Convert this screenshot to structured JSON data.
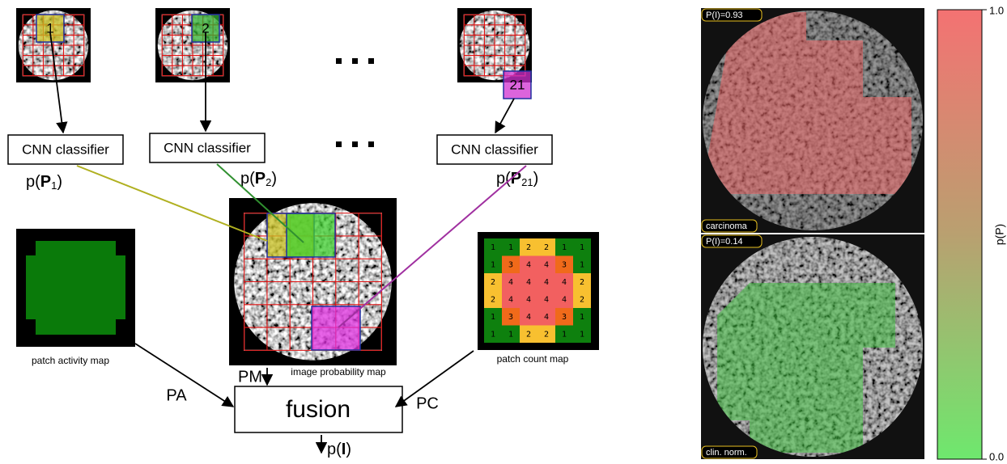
{
  "patch_labels": [
    "1",
    "2",
    "21"
  ],
  "classifiers": [
    "CNN classifier",
    "CNN classifier",
    "CNN classifier"
  ],
  "outputs": [
    [
      "p(",
      "P",
      "1",
      ")"
    ],
    [
      "p(",
      "P",
      "2",
      ")"
    ],
    [
      "p(",
      "P",
      "21",
      ")"
    ]
  ],
  "maps": {
    "activity": "patch activity map",
    "probability": "image probability map",
    "count": "patch count map"
  },
  "count_grid": [
    [
      1,
      1,
      2,
      2,
      1,
      1
    ],
    [
      1,
      3,
      4,
      4,
      3,
      1
    ],
    [
      2,
      4,
      4,
      4,
      4,
      2
    ],
    [
      2,
      4,
      4,
      4,
      4,
      2
    ],
    [
      1,
      3,
      4,
      4,
      3,
      1
    ],
    [
      1,
      1,
      2,
      2,
      1,
      1
    ]
  ],
  "inputs": {
    "pa": "PA",
    "pm": "PM",
    "pc": "PC"
  },
  "fusion": "fusion",
  "result": [
    "p(",
    "I",
    ")"
  ],
  "examples": [
    {
      "probability": "P(I)=0.93",
      "label": "carcinoma"
    },
    {
      "probability": "P(I)=0.14",
      "label": "clin. norm."
    }
  ],
  "colorbar": {
    "max": "1.0",
    "min": "0.0",
    "label": "p(P)"
  }
}
